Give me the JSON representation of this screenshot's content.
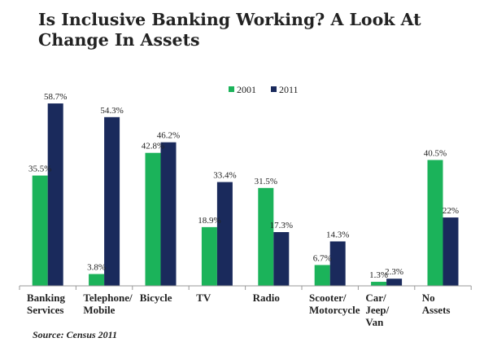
{
  "title": "Is Inclusive Banking Working? A Look At Change In Assets",
  "source": "Source: Census 2011",
  "colors": {
    "2001": "#1bb35a",
    "2011": "#1a2a5c"
  },
  "chart_data": {
    "type": "bar",
    "title": "Is Inclusive Banking Working? A Look At Change In Assets",
    "categories": [
      [
        "Banking",
        "Services"
      ],
      [
        "Telephone/",
        "Mobile"
      ],
      [
        "Bicycle"
      ],
      [
        "TV"
      ],
      [
        "Radio"
      ],
      [
        "Scooter/",
        "Motorcycle"
      ],
      [
        "Car/",
        "Jeep/",
        "Van"
      ],
      [
        "No",
        "Assets"
      ]
    ],
    "series": [
      {
        "name": "2001",
        "values": [
          35.5,
          3.8,
          42.8,
          18.9,
          31.5,
          6.7,
          1.3,
          40.5
        ],
        "labels": [
          "35.5%",
          "3.8%",
          "42.8%",
          "18.9%",
          "31.5%",
          "6.7%",
          "1.3%",
          "40.5%"
        ]
      },
      {
        "name": "2011",
        "values": [
          58.7,
          54.3,
          46.2,
          33.4,
          17.3,
          14.3,
          2.3,
          22
        ],
        "labels": [
          "58.7%",
          "54.3%",
          "46.2%",
          "33.4%",
          "17.3%",
          "14.3%",
          "2.3%",
          "22%"
        ]
      }
    ],
    "xlabel": "",
    "ylabel": "",
    "ylim": [
      0,
      65
    ],
    "legend": "top-center",
    "grid": false
  }
}
